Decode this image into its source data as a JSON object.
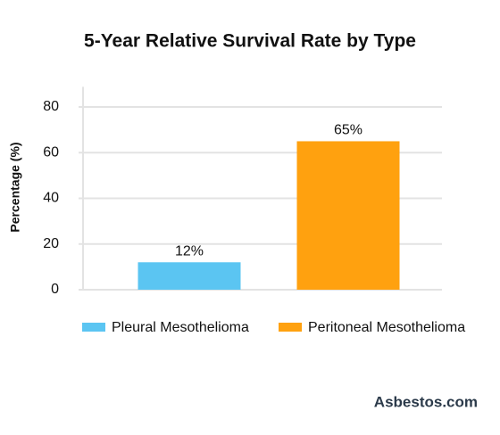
{
  "chart_data": {
    "type": "bar",
    "title": "5-Year Relative Survival Rate by Type",
    "y_label": "Percentage (%)",
    "categories": [
      "Pleural Mesothelioma",
      "Peritoneal Mesothelioma"
    ],
    "values": [
      12,
      65
    ],
    "value_labels": [
      "12%",
      "65%"
    ],
    "colors": [
      "#5bc5f2",
      "#ffa10f"
    ],
    "ylim": [
      0,
      90
    ],
    "yticks": [
      0,
      20,
      40,
      60,
      80
    ],
    "grid": true,
    "legend": "bottom",
    "watermark": "Asbestos.com"
  }
}
